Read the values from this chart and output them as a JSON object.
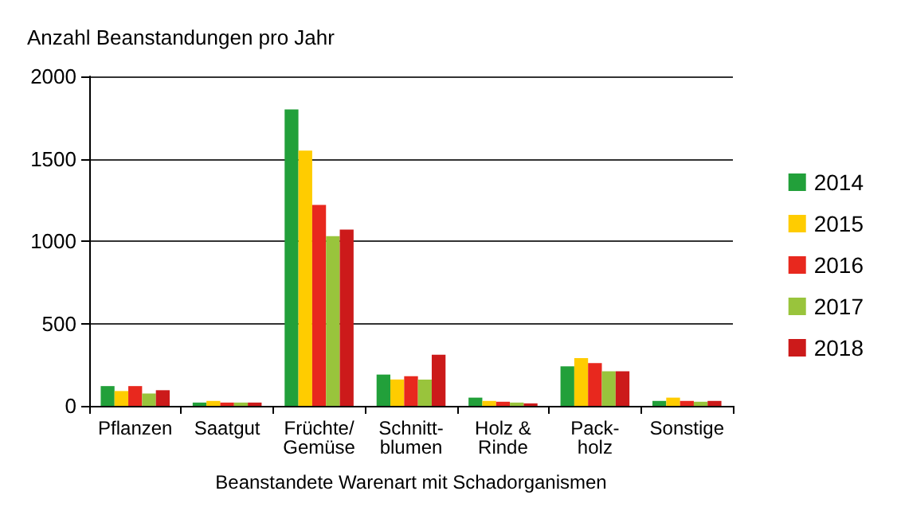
{
  "chart_data": {
    "type": "bar",
    "title": "Anzahl Beanstandungen pro Jahr",
    "xlabel": "Beanstandete Warenart mit Schadorganismen",
    "categories": [
      "Pflanzen",
      "Saatgut",
      "Früchte/\nGemüse",
      "Schnitt-\nblumen",
      "Holz &\nRinde",
      "Pack-\nholz",
      "Sonstige"
    ],
    "series": [
      {
        "name": "2014",
        "color": "#22a03a",
        "values": [
          120,
          20,
          1800,
          190,
          50,
          240,
          30
        ]
      },
      {
        "name": "2015",
        "color": "#ffcc00",
        "values": [
          90,
          30,
          1550,
          160,
          30,
          290,
          50
        ]
      },
      {
        "name": "2016",
        "color": "#e8281e",
        "values": [
          120,
          20,
          1220,
          180,
          25,
          260,
          30
        ]
      },
      {
        "name": "2017",
        "color": "#99c43c",
        "values": [
          75,
          20,
          1030,
          160,
          20,
          210,
          25
        ]
      },
      {
        "name": "2018",
        "color": "#cc1a1a",
        "values": [
          95,
          20,
          1070,
          310,
          15,
          210,
          30
        ]
      }
    ],
    "ylim": [
      0,
      2000
    ],
    "yticks": [
      0,
      500,
      1000,
      1500,
      2000
    ],
    "grid": "y",
    "legend": "right"
  }
}
